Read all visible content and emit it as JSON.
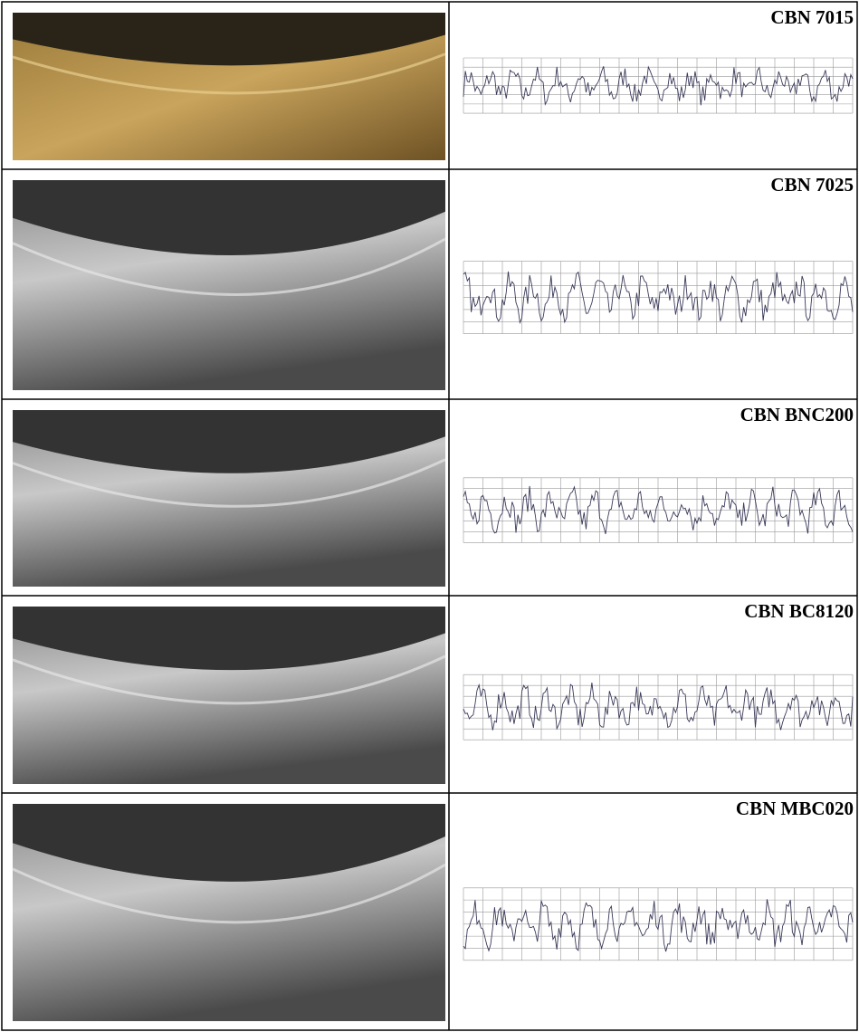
{
  "rows": [
    {
      "label": "CBN 7015"
    },
    {
      "label": "CBN 7025"
    },
    {
      "label": "CBN BNC200"
    },
    {
      "label": "CBN BC8120"
    },
    {
      "label": "CBN MBC020"
    }
  ]
}
